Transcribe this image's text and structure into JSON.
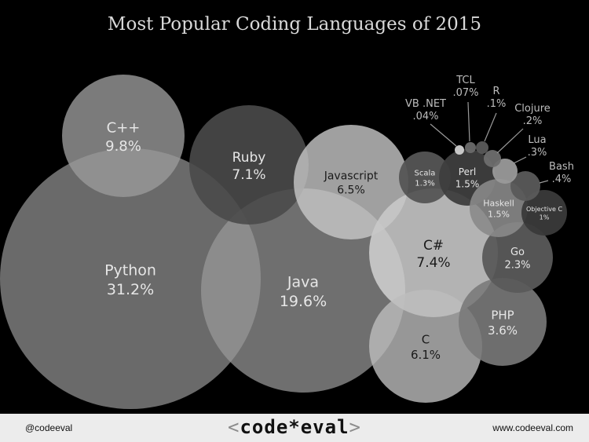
{
  "chart_data": {
    "type": "bubble",
    "title": "Most Popular Coding Languages of 2015",
    "series": [
      {
        "name": "Python",
        "value": "31.2%",
        "share": 31.2
      },
      {
        "name": "Java",
        "value": "19.6%",
        "share": 19.6
      },
      {
        "name": "C++",
        "value": "9.8%",
        "share": 9.8
      },
      {
        "name": "C#",
        "value": "7.4%",
        "share": 7.4
      },
      {
        "name": "Ruby",
        "value": "7.1%",
        "share": 7.1
      },
      {
        "name": "Javascript",
        "value": "6.5%",
        "share": 6.5
      },
      {
        "name": "C",
        "value": "6.1%",
        "share": 6.1
      },
      {
        "name": "PHP",
        "value": "3.6%",
        "share": 3.6
      },
      {
        "name": "Go",
        "value": "2.3%",
        "share": 2.3
      },
      {
        "name": "Scala",
        "value": "1.3%",
        "share": 1.3
      },
      {
        "name": "Perl",
        "value": "1.5%",
        "share": 1.5
      },
      {
        "name": "Haskell",
        "value": "1.5%",
        "share": 1.5
      },
      {
        "name": "Objective C",
        "value": "1%",
        "share": 1.0
      },
      {
        "name": "Bash",
        "value": ".4%",
        "share": 0.4
      },
      {
        "name": "Lua",
        "value": ".3%",
        "share": 0.3
      },
      {
        "name": "Clojure",
        "value": ".2%",
        "share": 0.2
      },
      {
        "name": "R",
        "value": ".1%",
        "share": 0.1
      },
      {
        "name": "TCL",
        "value": ".07%",
        "share": 0.07
      },
      {
        "name": "VB .NET",
        "value": ".04%",
        "share": 0.04
      }
    ]
  },
  "footer": {
    "handle": "@codeeval",
    "logo_left": "<",
    "logo_text": "code*eval",
    "logo_right": ">",
    "url": "www.codeeval.com"
  }
}
